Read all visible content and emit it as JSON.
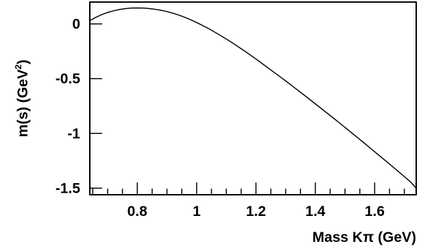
{
  "chart_data": {
    "type": "line",
    "title": "",
    "xlabel": "Mass Kπ (GeV)",
    "ylabel": {
      "prefix": "m(s) (GeV",
      "superscript": "2",
      "suffix": ")"
    },
    "xlim": [
      0.64,
      1.74
    ],
    "ylim": [
      -1.56,
      0.2
    ],
    "xticks": [
      {
        "value": 0.8,
        "label": "0.8"
      },
      {
        "value": 1.0,
        "label": "1"
      },
      {
        "value": 1.2,
        "label": "1.2"
      },
      {
        "value": 1.4,
        "label": "1.4"
      },
      {
        "value": 1.6,
        "label": "1.6"
      }
    ],
    "yticks": [
      {
        "value": 0,
        "label": "0"
      },
      {
        "value": -0.5,
        "label": "-0.5"
      },
      {
        "value": -1.0,
        "label": "-1"
      },
      {
        "value": -1.5,
        "label": "-1.5"
      }
    ],
    "grid": false,
    "series": [
      {
        "x": [
          0.64,
          0.66,
          0.68,
          0.7,
          0.72,
          0.74,
          0.76,
          0.78,
          0.8,
          0.82,
          0.84,
          0.86,
          0.88,
          0.9,
          0.92,
          0.94,
          0.96,
          0.98,
          1.0,
          1.02,
          1.04,
          1.06,
          1.08,
          1.1,
          1.12,
          1.14,
          1.16,
          1.18,
          1.2,
          1.22,
          1.24,
          1.26,
          1.28,
          1.3,
          1.32,
          1.34,
          1.36,
          1.38,
          1.4,
          1.42,
          1.44,
          1.46,
          1.48,
          1.5,
          1.52,
          1.54,
          1.56,
          1.58,
          1.6,
          1.62,
          1.64,
          1.66,
          1.68,
          1.7,
          1.72,
          1.74
        ],
        "y": [
          0.03,
          0.06,
          0.085,
          0.105,
          0.12,
          0.132,
          0.14,
          0.145,
          0.146,
          0.145,
          0.141,
          0.134,
          0.125,
          0.113,
          0.098,
          0.081,
          0.061,
          0.038,
          0.013,
          -0.014,
          -0.042,
          -0.073,
          -0.105,
          -0.138,
          -0.172,
          -0.208,
          -0.245,
          -0.282,
          -0.32,
          -0.36,
          -0.4,
          -0.44,
          -0.48,
          -0.52,
          -0.562,
          -0.603,
          -0.645,
          -0.687,
          -0.73,
          -0.772,
          -0.815,
          -0.858,
          -0.901,
          -0.945,
          -0.989,
          -1.033,
          -1.077,
          -1.122,
          -1.167,
          -1.212,
          -1.257,
          -1.302,
          -1.348,
          -1.394,
          -1.44,
          -1.5
        ]
      }
    ]
  }
}
